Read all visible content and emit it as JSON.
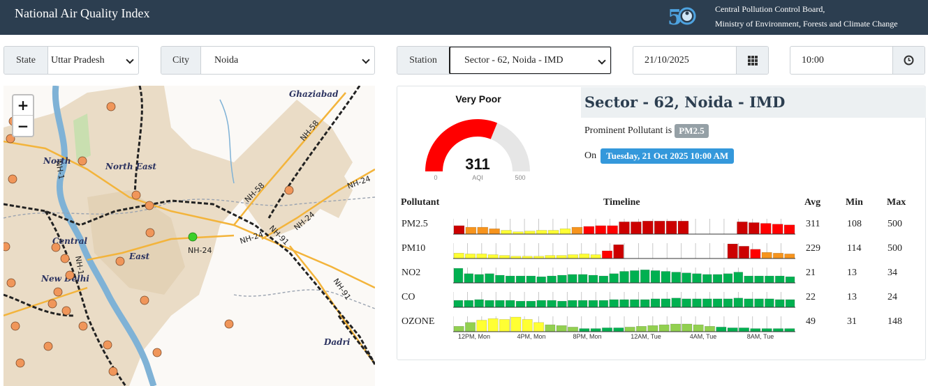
{
  "header": {
    "title": "National Air Quality Index",
    "org_line1": "Central Pollution Control Board,",
    "org_line2": "Ministry of Environment, Forests and Climate Change",
    "logo_icon": "cpcb-50-years-logo"
  },
  "filters": {
    "state_label": "State",
    "state_value": "Uttar Pradesh",
    "city_label": "City",
    "city_value": "Noida",
    "station_label": "Station",
    "station_value": "Sector - 62, Noida - IMD",
    "date_value": "21/10/2025",
    "date_icon": "calendar-icon",
    "time_value": "10:00",
    "time_icon": "clock-icon"
  },
  "map": {
    "zoom_in": "+",
    "zoom_out": "−",
    "labels": {
      "ghaziabad": "Ghaziabad",
      "north": "North",
      "north_east": "North East",
      "central": "Central",
      "east": "East",
      "new_delhi": "New Delhi",
      "dadri": "Dadri",
      "nh58a": "NH-58",
      "nh58b": "NH-58",
      "nh24a": "NH-24",
      "nh24b": "NH-24",
      "nh24c": "NH-24",
      "nh24d": "NH-24",
      "nh91a": "NH-91",
      "nh91b": "NH-91",
      "nh1": "NH-1",
      "nh1b": "NH-1"
    },
    "colors": {
      "land": "#eadcc6",
      "water": "#7fb2d6",
      "road": "#f3b43b",
      "rail": "#222222",
      "station_marker": "#f0965a",
      "active_marker": "#3ccf2a"
    }
  },
  "aqi": {
    "category": "Very Poor",
    "value": 311,
    "min_label": "0",
    "max_label": "500",
    "unit_label": "AQI",
    "max": 500,
    "color": "#ff0000"
  },
  "station": {
    "name": "Sector - 62, Noida - IMD",
    "prominent_prefix": "Prominent Pollutant is",
    "prominent": "PM2.5",
    "on_prefix": "On",
    "datetime": "Tuesday, 21 Oct 2025 10:00 AM"
  },
  "table": {
    "headers": {
      "pollutant": "Pollutant",
      "timeline": "Timeline",
      "avg": "Avg",
      "min": "Min",
      "max": "Max"
    },
    "time_ticks": [
      "12PM, Mon",
      "4PM, Mon",
      "8PM, Mon",
      "12AM, Tue",
      "4AM, Tue",
      "8AM, Tue"
    ],
    "rows": [
      {
        "name": "PM2.5",
        "avg": "311",
        "min": "108",
        "max": "500",
        "bars": [
          0.55,
          0.45,
          0.45,
          0.35,
          0.25,
          0.15,
          0.2,
          0.25,
          0.25,
          0.35,
          0.45,
          0.5,
          0.55,
          0.55,
          0.8,
          0.8,
          0.85,
          0.85,
          0.85,
          0.85,
          0,
          0,
          0,
          0,
          0.8,
          0.75,
          0.7,
          0.65,
          0.6
        ],
        "colors": [
          "#cc0000",
          "#f7941d",
          "#f7941d",
          "#f7941d",
          "#ffff33",
          "#ffff33",
          "#ffff33",
          "#ffff33",
          "#ffff33",
          "#ffff33",
          "#f7941d",
          "#ff0000",
          "#ff0000",
          "#ff0000",
          "#cc0000",
          "#cc0000",
          "#cc0000",
          "#cc0000",
          "#cc0000",
          "#cc0000",
          "#cc0000",
          "#cc0000",
          "#cc0000",
          "#cc0000",
          "#cc0000",
          "#cc0000",
          "#ff0000",
          "#ff0000",
          "#ff0000"
        ]
      },
      {
        "name": "PM10",
        "avg": "229",
        "min": "114",
        "max": "500",
        "bars": [
          0.35,
          0.3,
          0.3,
          0.25,
          0.2,
          0.15,
          0.15,
          0.15,
          0.2,
          0.2,
          0.25,
          0.3,
          0.25,
          0.5,
          0.9,
          0,
          0,
          0,
          0,
          0,
          0,
          0,
          0,
          0,
          0.95,
          0.8,
          0.6,
          0.4,
          0.35,
          0.3
        ],
        "colors": [
          "#ffff33",
          "#ffff33",
          "#ffff33",
          "#ffff33",
          "#ffff33",
          "#ffff33",
          "#ffff33",
          "#ffff33",
          "#ffff33",
          "#ffff33",
          "#ffff33",
          "#ffff33",
          "#ffff33",
          "#ff0000",
          "#cc0000",
          "#cc0000",
          "#cc0000",
          "#cc0000",
          "#cc0000",
          "#cc0000",
          "#cc0000",
          "#cc0000",
          "#cc0000",
          "#cc0000",
          "#cc0000",
          "#cc0000",
          "#ff0000",
          "#f7941d",
          "#f7941d",
          "#f7941d"
        ]
      },
      {
        "name": "NO2",
        "avg": "21",
        "min": "13",
        "max": "34",
        "bars": [
          0.95,
          0.6,
          0.55,
          0.6,
          0.5,
          0.45,
          0.45,
          0.45,
          0.4,
          0.45,
          0.5,
          0.55,
          0.55,
          0.5,
          0.45,
          0.6,
          0.75,
          0.8,
          0.85,
          0.8,
          0.75,
          0.7,
          0.65,
          0.6,
          0.55,
          0.55,
          0.6,
          0.7,
          0.45,
          0.45,
          0.45,
          0.45,
          0.4
        ],
        "colors": [
          "#00b050"
        ]
      },
      {
        "name": "CO",
        "avg": "22",
        "min": "13",
        "max": "24",
        "bars": [
          0.45,
          0.45,
          0.5,
          0.45,
          0.45,
          0.45,
          0.4,
          0.4,
          0.45,
          0.45,
          0.4,
          0.45,
          0.45,
          0.45,
          0.45,
          0.5,
          0.5,
          0.5,
          0.5,
          0.55,
          0.55,
          0.6,
          0.55,
          0.55,
          0.55,
          0.55,
          0.55,
          0.6,
          0.55,
          0.55,
          0.55,
          0.5,
          0.5
        ],
        "colors": [
          "#00b050"
        ]
      },
      {
        "name": "OZONE",
        "avg": "49",
        "min": "31",
        "max": "148",
        "bars": [
          0.35,
          0.6,
          0.75,
          0.85,
          0.8,
          0.95,
          0.8,
          0.6,
          0.45,
          0.4,
          0.3,
          0.2,
          0.2,
          0.25,
          0.25,
          0.3,
          0.35,
          0.4,
          0.45,
          0.5,
          0.5,
          0.45,
          0.35,
          0.3,
          0.25,
          0.25,
          0.2,
          0.2,
          0.2,
          0.2
        ],
        "colors": [
          "#92d050",
          "#92d050",
          "#ffff33",
          "#ffff33",
          "#ffff33",
          "#ffff33",
          "#ffff33",
          "#ffff33",
          "#92d050",
          "#92d050",
          "#92d050",
          "#00b050",
          "#00b050",
          "#00b050",
          "#00b050",
          "#92d050",
          "#92d050",
          "#92d050",
          "#92d050",
          "#92d050",
          "#92d050",
          "#92d050",
          "#92d050",
          "#00b050",
          "#00b050",
          "#00b050",
          "#00b050",
          "#00b050",
          "#00b050",
          "#00b050"
        ]
      }
    ]
  }
}
